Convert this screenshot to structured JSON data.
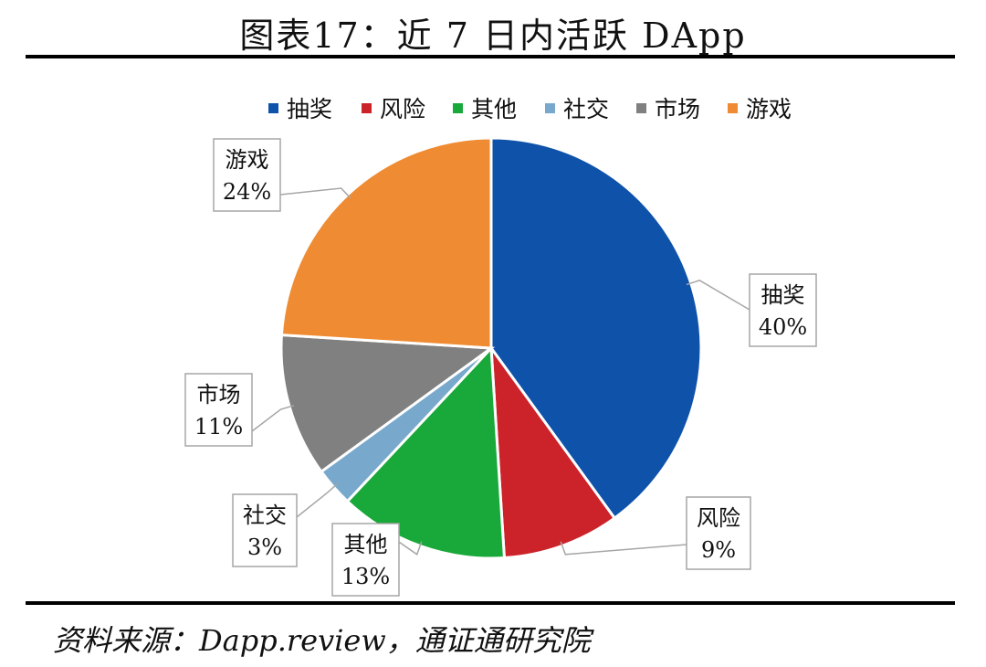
{
  "title": "图表17：近 7 日内活跃 DApp",
  "source": "资料来源：Dapp.review，通证通研究院",
  "colors": {
    "抽奖": "#0F52AA",
    "风险": "#CC2229",
    "其他": "#19A83A",
    "社交": "#78A9CC",
    "市场": "#808080",
    "游戏": "#EE8B33"
  },
  "chart_data": {
    "type": "pie",
    "title": "",
    "legend_position": "top",
    "slices": [
      {
        "label": "抽奖",
        "value": 40,
        "value_label": "40%"
      },
      {
        "label": "风险",
        "value": 9,
        "value_label": "9%"
      },
      {
        "label": "其他",
        "value": 13,
        "value_label": "13%"
      },
      {
        "label": "社交",
        "value": 3,
        "value_label": "3%"
      },
      {
        "label": "市场",
        "value": 11,
        "value_label": "11%"
      },
      {
        "label": "游戏",
        "value": 24,
        "value_label": "24%"
      }
    ]
  }
}
